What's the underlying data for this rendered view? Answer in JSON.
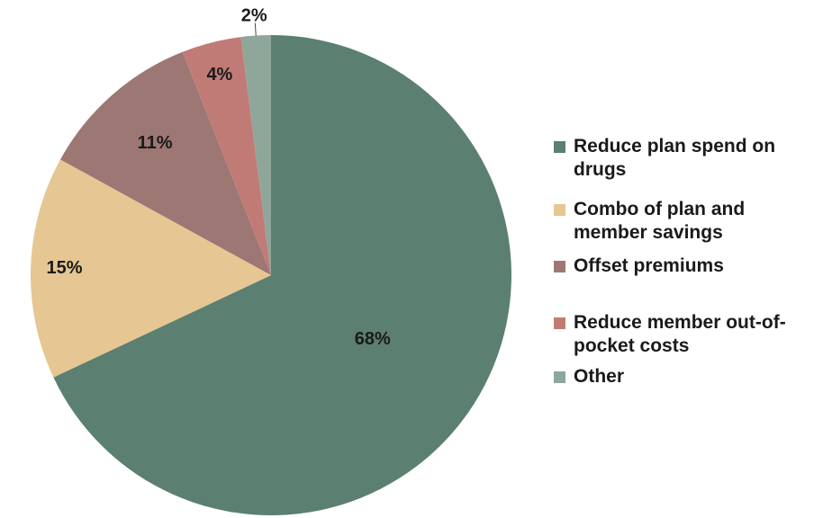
{
  "chart_data": {
    "type": "pie",
    "title": "",
    "legend_position": "right",
    "slices": [
      {
        "label": "Reduce plan spend on drugs",
        "value": 68,
        "value_label": "68%",
        "color": "#5b7f70"
      },
      {
        "label": "Combo of plan and member savings",
        "value": 15,
        "value_label": "15%",
        "color": "#e6c692"
      },
      {
        "label": "Offset premiums",
        "value": 11,
        "value_label": "11%",
        "color": "#9c7774"
      },
      {
        "label": "Reduce member out-of-pocket costs",
        "value": 4,
        "value_label": "4%",
        "color": "#c17b77"
      },
      {
        "label": "Other",
        "value": 2,
        "value_label": "2%",
        "color": "#8fa69b"
      }
    ]
  }
}
